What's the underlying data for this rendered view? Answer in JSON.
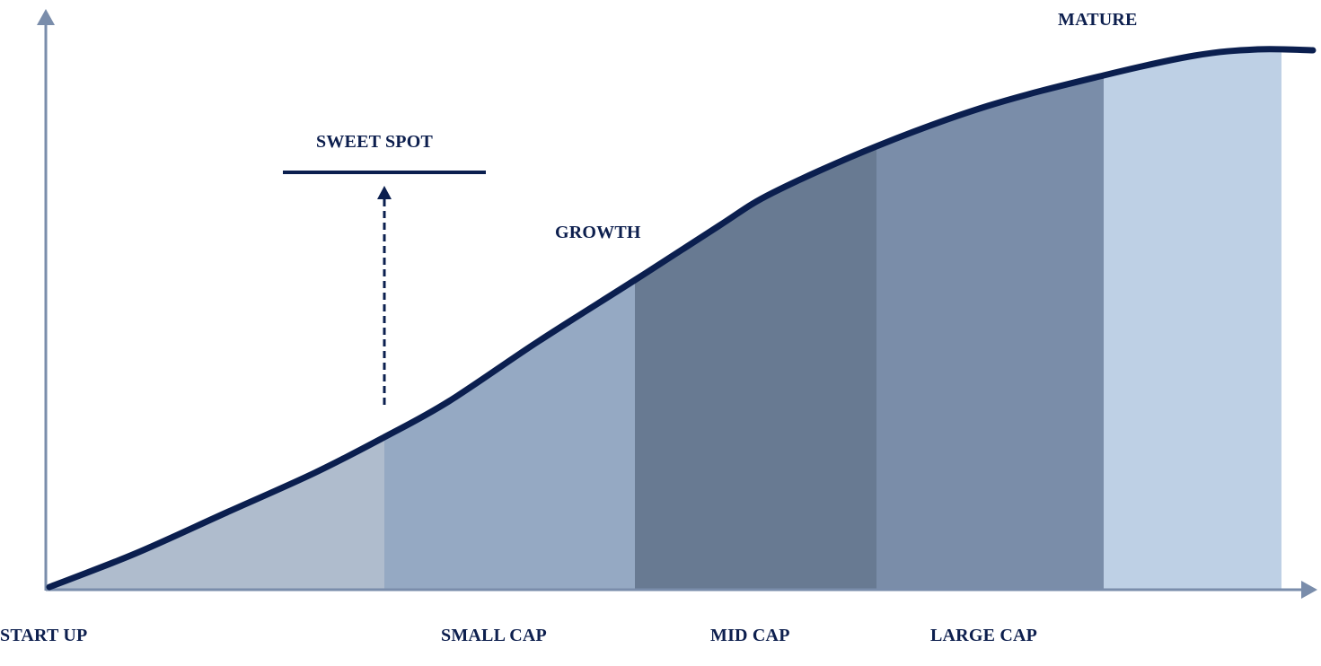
{
  "colors": {
    "curve": "#0b1f4f",
    "axis": "#7a8dab",
    "bands": [
      "#afbccd",
      "#95a9c3",
      "#687a92",
      "#7a8da9",
      "#bed0e5"
    ]
  },
  "labels": {
    "sweet_spot": "SWEET SPOT",
    "growth": "GROWTH",
    "mature": "MATURE",
    "start_up": "START UP",
    "small_cap": "SMALL CAP",
    "mid_cap": "MID CAP",
    "large_cap": "LARGE CAP"
  }
}
